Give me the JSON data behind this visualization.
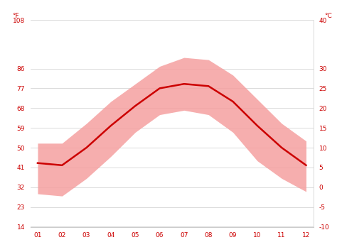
{
  "months": [
    1,
    2,
    3,
    4,
    5,
    6,
    7,
    8,
    9,
    10,
    11,
    12
  ],
  "month_labels": [
    "01",
    "02",
    "03",
    "04",
    "05",
    "06",
    "07",
    "08",
    "09",
    "10",
    "11",
    "12"
  ],
  "avg_temp_f": [
    43,
    42,
    50,
    60,
    69,
    77,
    79,
    78,
    71,
    60,
    50,
    42
  ],
  "high_temp_f": [
    52,
    52,
    61,
    71,
    79,
    87,
    91,
    90,
    83,
    72,
    61,
    53
  ],
  "low_temp_f": [
    29,
    28,
    36,
    46,
    57,
    65,
    67,
    65,
    57,
    44,
    36,
    30
  ],
  "yticks_f": [
    14,
    23,
    32,
    41,
    50,
    59,
    68,
    77,
    86,
    108
  ],
  "yticks_c": [
    -10,
    -5,
    0,
    5,
    10,
    15,
    20,
    25,
    30,
    40
  ],
  "ylim_f": [
    14,
    108
  ],
  "line_color": "#cc0000",
  "band_color": "#f5a0a0",
  "band_alpha": 0.85,
  "grid_color": "#cccccc",
  "tick_color": "#cc0000",
  "background_color": "#ffffff",
  "label_fontsize": 6.5,
  "tick_fontsize": 6.5
}
